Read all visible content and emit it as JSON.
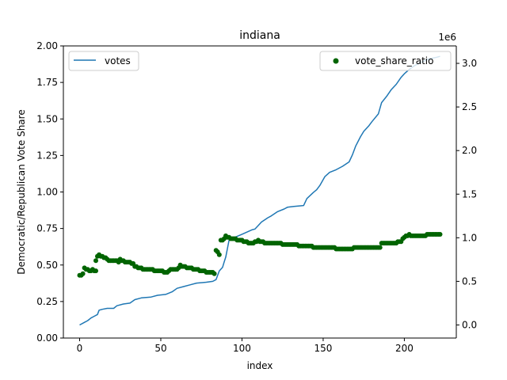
{
  "chart_data": {
    "type": "line",
    "title": "indiana",
    "xlabel": "index",
    "ylabel_left": "Democratic/Republican Vote Share",
    "ylabel_right": "",
    "right_axis_offset_label": "1e6",
    "xlim": [
      -10,
      232
    ],
    "ylim_left": [
      0,
      2.0
    ],
    "ylim_right": [
      -0.15,
      3.2
    ],
    "x_ticks": [
      0,
      50,
      100,
      150,
      200
    ],
    "y_left_ticks": [
      "0.00",
      "0.25",
      "0.50",
      "0.75",
      "1.00",
      "1.25",
      "1.50",
      "1.75",
      "2.00"
    ],
    "y_right_ticks": [
      "0.0",
      "0.5",
      "1.0",
      "1.5",
      "2.0",
      "2.5",
      "3.0"
    ],
    "legend_left": {
      "placement": "upper-left",
      "label": "votes"
    },
    "legend_right": {
      "placement": "upper-right",
      "label": "vote_share_ratio"
    },
    "grid": false,
    "colors": {
      "votes": "#1f77b4",
      "vote_share_ratio": "#006400"
    },
    "series": [
      {
        "name": "votes",
        "axis": "right",
        "style": "line",
        "points": [
          [
            0,
            0.0
          ],
          [
            3,
            0.03
          ],
          [
            5,
            0.05
          ],
          [
            7,
            0.08
          ],
          [
            9,
            0.1
          ],
          [
            11,
            0.12
          ],
          [
            12,
            0.17
          ],
          [
            14,
            0.18
          ],
          [
            17,
            0.19
          ],
          [
            21,
            0.19
          ],
          [
            23,
            0.22
          ],
          [
            27,
            0.24
          ],
          [
            31,
            0.25
          ],
          [
            34,
            0.29
          ],
          [
            38,
            0.31
          ],
          [
            44,
            0.32
          ],
          [
            48,
            0.34
          ],
          [
            53,
            0.35
          ],
          [
            57,
            0.38
          ],
          [
            60,
            0.42
          ],
          [
            64,
            0.44
          ],
          [
            68,
            0.46
          ],
          [
            72,
            0.48
          ],
          [
            78,
            0.49
          ],
          [
            82,
            0.5
          ],
          [
            84,
            0.52
          ],
          [
            86,
            0.62
          ],
          [
            88,
            0.66
          ],
          [
            89,
            0.72
          ],
          [
            90,
            0.78
          ],
          [
            92,
            0.97
          ],
          [
            95,
            1.0
          ],
          [
            100,
            1.04
          ],
          [
            106,
            1.09
          ],
          [
            108,
            1.1
          ],
          [
            110,
            1.14
          ],
          [
            112,
            1.18
          ],
          [
            116,
            1.23
          ],
          [
            118,
            1.25
          ],
          [
            122,
            1.3
          ],
          [
            126,
            1.33
          ],
          [
            128,
            1.35
          ],
          [
            132,
            1.36
          ],
          [
            138,
            1.37
          ],
          [
            140,
            1.45
          ],
          [
            144,
            1.52
          ],
          [
            146,
            1.55
          ],
          [
            148,
            1.6
          ],
          [
            151,
            1.7
          ],
          [
            154,
            1.75
          ],
          [
            158,
            1.78
          ],
          [
            162,
            1.82
          ],
          [
            166,
            1.87
          ],
          [
            168,
            1.95
          ],
          [
            170,
            2.05
          ],
          [
            173,
            2.16
          ],
          [
            175,
            2.22
          ],
          [
            178,
            2.28
          ],
          [
            180,
            2.33
          ],
          [
            184,
            2.42
          ],
          [
            186,
            2.55
          ],
          [
            189,
            2.62
          ],
          [
            192,
            2.7
          ],
          [
            195,
            2.76
          ],
          [
            198,
            2.84
          ],
          [
            200,
            2.88
          ],
          [
            203,
            2.93
          ],
          [
            206,
            2.97
          ],
          [
            210,
            3.01
          ],
          [
            215,
            3.05
          ],
          [
            220,
            3.07
          ],
          [
            222,
            3.08
          ]
        ]
      },
      {
        "name": "vote_share_ratio",
        "axis": "left",
        "style": "scatter",
        "points": [
          [
            0,
            0.43
          ],
          [
            1,
            0.43
          ],
          [
            2,
            0.44
          ],
          [
            3,
            0.48
          ],
          [
            4,
            0.47
          ],
          [
            5,
            0.47
          ],
          [
            6,
            0.46
          ],
          [
            7,
            0.46
          ],
          [
            8,
            0.47
          ],
          [
            9,
            0.46
          ],
          [
            10,
            0.46
          ],
          [
            10,
            0.53
          ],
          [
            11,
            0.56
          ],
          [
            12,
            0.57
          ],
          [
            13,
            0.56
          ],
          [
            14,
            0.56
          ],
          [
            15,
            0.55
          ],
          [
            16,
            0.55
          ],
          [
            17,
            0.54
          ],
          [
            18,
            0.53
          ],
          [
            19,
            0.53
          ],
          [
            20,
            0.53
          ],
          [
            21,
            0.53
          ],
          [
            22,
            0.53
          ],
          [
            23,
            0.53
          ],
          [
            24,
            0.52
          ],
          [
            25,
            0.54
          ],
          [
            26,
            0.53
          ],
          [
            27,
            0.53
          ],
          [
            28,
            0.52
          ],
          [
            29,
            0.52
          ],
          [
            30,
            0.52
          ],
          [
            31,
            0.52
          ],
          [
            32,
            0.51
          ],
          [
            33,
            0.51
          ],
          [
            34,
            0.49
          ],
          [
            35,
            0.49
          ],
          [
            36,
            0.48
          ],
          [
            37,
            0.48
          ],
          [
            38,
            0.48
          ],
          [
            39,
            0.47
          ],
          [
            40,
            0.47
          ],
          [
            41,
            0.47
          ],
          [
            42,
            0.47
          ],
          [
            43,
            0.47
          ],
          [
            44,
            0.47
          ],
          [
            45,
            0.47
          ],
          [
            46,
            0.46
          ],
          [
            47,
            0.46
          ],
          [
            48,
            0.46
          ],
          [
            49,
            0.46
          ],
          [
            50,
            0.46
          ],
          [
            51,
            0.46
          ],
          [
            52,
            0.45
          ],
          [
            53,
            0.45
          ],
          [
            54,
            0.45
          ],
          [
            55,
            0.46
          ],
          [
            56,
            0.47
          ],
          [
            57,
            0.47
          ],
          [
            58,
            0.47
          ],
          [
            59,
            0.47
          ],
          [
            60,
            0.47
          ],
          [
            61,
            0.48
          ],
          [
            62,
            0.5
          ],
          [
            63,
            0.49
          ],
          [
            64,
            0.49
          ],
          [
            65,
            0.49
          ],
          [
            66,
            0.48
          ],
          [
            67,
            0.48
          ],
          [
            68,
            0.48
          ],
          [
            69,
            0.48
          ],
          [
            70,
            0.47
          ],
          [
            71,
            0.47
          ],
          [
            72,
            0.47
          ],
          [
            73,
            0.47
          ],
          [
            74,
            0.46
          ],
          [
            75,
            0.46
          ],
          [
            76,
            0.46
          ],
          [
            77,
            0.46
          ],
          [
            78,
            0.45
          ],
          [
            79,
            0.45
          ],
          [
            80,
            0.45
          ],
          [
            81,
            0.45
          ],
          [
            82,
            0.45
          ],
          [
            83,
            0.44
          ],
          [
            84,
            0.6
          ],
          [
            85,
            0.59
          ],
          [
            86,
            0.57
          ],
          [
            87,
            0.67
          ],
          [
            88,
            0.67
          ],
          [
            89,
            0.68
          ],
          [
            90,
            0.7
          ],
          [
            91,
            0.69
          ],
          [
            92,
            0.69
          ],
          [
            93,
            0.68
          ],
          [
            94,
            0.68
          ],
          [
            95,
            0.68
          ],
          [
            96,
            0.68
          ],
          [
            97,
            0.67
          ],
          [
            98,
            0.67
          ],
          [
            99,
            0.67
          ],
          [
            100,
            0.67
          ],
          [
            101,
            0.66
          ],
          [
            102,
            0.66
          ],
          [
            103,
            0.66
          ],
          [
            104,
            0.65
          ],
          [
            105,
            0.65
          ],
          [
            106,
            0.65
          ],
          [
            107,
            0.65
          ],
          [
            108,
            0.66
          ],
          [
            109,
            0.66
          ],
          [
            110,
            0.67
          ],
          [
            111,
            0.66
          ],
          [
            112,
            0.66
          ],
          [
            113,
            0.66
          ],
          [
            114,
            0.65
          ],
          [
            115,
            0.65
          ],
          [
            116,
            0.65
          ],
          [
            117,
            0.65
          ],
          [
            118,
            0.65
          ],
          [
            119,
            0.65
          ],
          [
            120,
            0.65
          ],
          [
            121,
            0.65
          ],
          [
            122,
            0.65
          ],
          [
            123,
            0.65
          ],
          [
            124,
            0.65
          ],
          [
            125,
            0.64
          ],
          [
            126,
            0.64
          ],
          [
            127,
            0.64
          ],
          [
            128,
            0.64
          ],
          [
            129,
            0.64
          ],
          [
            130,
            0.64
          ],
          [
            131,
            0.64
          ],
          [
            132,
            0.64
          ],
          [
            133,
            0.64
          ],
          [
            134,
            0.64
          ],
          [
            135,
            0.63
          ],
          [
            136,
            0.63
          ],
          [
            137,
            0.63
          ],
          [
            138,
            0.63
          ],
          [
            139,
            0.63
          ],
          [
            140,
            0.63
          ],
          [
            141,
            0.63
          ],
          [
            142,
            0.63
          ],
          [
            143,
            0.63
          ],
          [
            144,
            0.62
          ],
          [
            145,
            0.62
          ],
          [
            146,
            0.62
          ],
          [
            147,
            0.62
          ],
          [
            148,
            0.62
          ],
          [
            149,
            0.62
          ],
          [
            150,
            0.62
          ],
          [
            151,
            0.62
          ],
          [
            152,
            0.62
          ],
          [
            153,
            0.62
          ],
          [
            154,
            0.62
          ],
          [
            155,
            0.62
          ],
          [
            156,
            0.62
          ],
          [
            157,
            0.62
          ],
          [
            158,
            0.61
          ],
          [
            159,
            0.61
          ],
          [
            160,
            0.61
          ],
          [
            161,
            0.61
          ],
          [
            162,
            0.61
          ],
          [
            163,
            0.61
          ],
          [
            164,
            0.61
          ],
          [
            165,
            0.61
          ],
          [
            166,
            0.61
          ],
          [
            167,
            0.61
          ],
          [
            168,
            0.61
          ],
          [
            169,
            0.62
          ],
          [
            170,
            0.62
          ],
          [
            171,
            0.62
          ],
          [
            172,
            0.62
          ],
          [
            173,
            0.62
          ],
          [
            174,
            0.62
          ],
          [
            175,
            0.62
          ],
          [
            176,
            0.62
          ],
          [
            177,
            0.62
          ],
          [
            178,
            0.62
          ],
          [
            179,
            0.62
          ],
          [
            180,
            0.62
          ],
          [
            181,
            0.62
          ],
          [
            182,
            0.62
          ],
          [
            183,
            0.62
          ],
          [
            184,
            0.62
          ],
          [
            185,
            0.62
          ],
          [
            186,
            0.65
          ],
          [
            187,
            0.65
          ],
          [
            188,
            0.65
          ],
          [
            189,
            0.65
          ],
          [
            190,
            0.65
          ],
          [
            191,
            0.65
          ],
          [
            192,
            0.65
          ],
          [
            193,
            0.65
          ],
          [
            194,
            0.65
          ],
          [
            195,
            0.65
          ],
          [
            196,
            0.66
          ],
          [
            197,
            0.66
          ],
          [
            198,
            0.66
          ],
          [
            199,
            0.68
          ],
          [
            200,
            0.69
          ],
          [
            201,
            0.7
          ],
          [
            202,
            0.7
          ],
          [
            203,
            0.71
          ],
          [
            204,
            0.7
          ],
          [
            205,
            0.7
          ],
          [
            206,
            0.7
          ],
          [
            207,
            0.7
          ],
          [
            208,
            0.7
          ],
          [
            209,
            0.7
          ],
          [
            210,
            0.7
          ],
          [
            211,
            0.7
          ],
          [
            212,
            0.7
          ],
          [
            213,
            0.7
          ],
          [
            214,
            0.71
          ],
          [
            215,
            0.71
          ],
          [
            216,
            0.71
          ],
          [
            217,
            0.71
          ],
          [
            218,
            0.71
          ],
          [
            219,
            0.71
          ],
          [
            220,
            0.71
          ],
          [
            221,
            0.71
          ],
          [
            222,
            0.71
          ]
        ]
      }
    ]
  }
}
